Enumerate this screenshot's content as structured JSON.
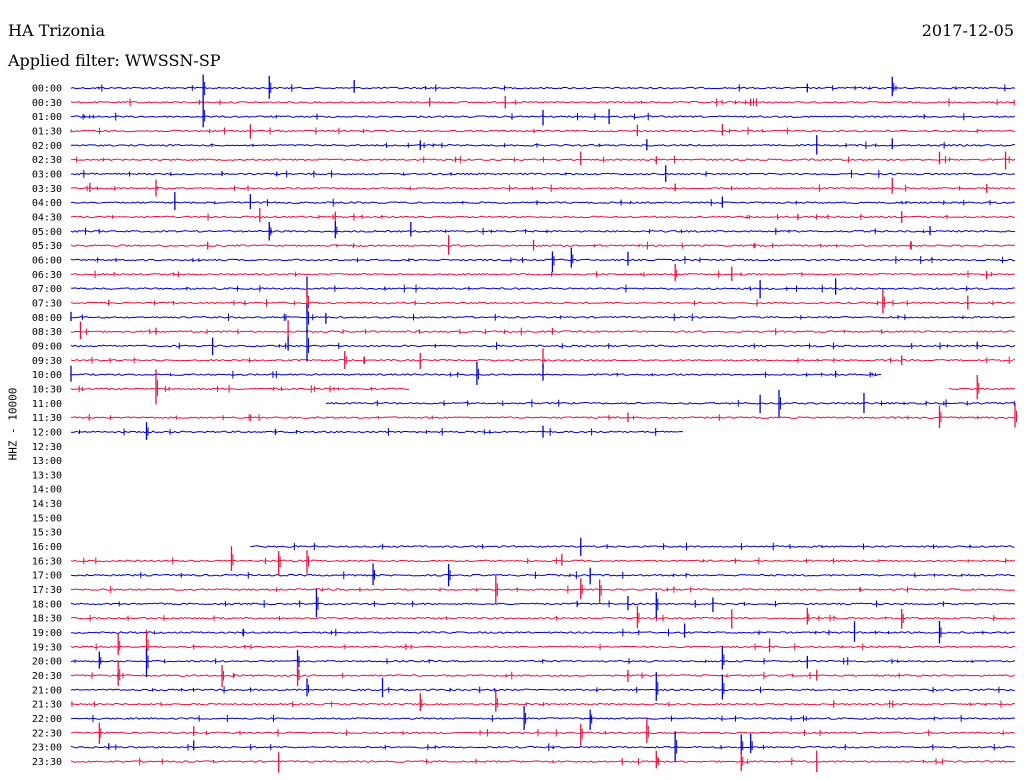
{
  "header": {
    "station": "HA Trizonia",
    "date": "2017-12-05",
    "filter": "Applied filter: WWSSN-SP"
  },
  "chart_data": {
    "type": "line",
    "title": "HA Trizonia",
    "ylabel": "HHZ - 10000",
    "row_labels": [
      "00:00",
      "00:30",
      "01:00",
      "01:30",
      "02:00",
      "02:30",
      "03:00",
      "03:30",
      "04:00",
      "04:30",
      "05:00",
      "05:30",
      "06:00",
      "06:30",
      "07:00",
      "07:30",
      "08:00",
      "08:30",
      "09:00",
      "09:30",
      "10:00",
      "10:30",
      "11:00",
      "11:30",
      "12:00",
      "12:30",
      "13:00",
      "13:30",
      "14:00",
      "14:30",
      "15:00",
      "15:30",
      "16:00",
      "16:30",
      "17:00",
      "17:30",
      "18:00",
      "18:30",
      "19:00",
      "19:30",
      "20:00",
      "20:30",
      "21:00",
      "21:30",
      "22:00",
      "22:30",
      "23:00",
      "23:30"
    ],
    "series_colors": [
      "#0000c8",
      "#e8103c"
    ],
    "row_coverage": [
      [
        0,
        1
      ],
      [
        0,
        1
      ],
      [
        0,
        1
      ],
      [
        0,
        1
      ],
      [
        0,
        1
      ],
      [
        0,
        1
      ],
      [
        0,
        1
      ],
      [
        0,
        1
      ],
      [
        0,
        1
      ],
      [
        0,
        1
      ],
      [
        0,
        1
      ],
      [
        0,
        1
      ],
      [
        0,
        1
      ],
      [
        0,
        1
      ],
      [
        0,
        1
      ],
      [
        0,
        1
      ],
      [
        0,
        1
      ],
      [
        0,
        1
      ],
      [
        0,
        1
      ],
      [
        0,
        1
      ],
      [
        0,
        0.86
      ],
      [
        0,
        0.36
      ],
      [
        0.27,
        1
      ],
      [
        0,
        1
      ],
      [
        0,
        0.65
      ],
      null,
      null,
      null,
      null,
      null,
      null,
      null,
      [
        0.19,
        1
      ],
      [
        0,
        1
      ],
      [
        0,
        1
      ],
      [
        0,
        1
      ],
      [
        0,
        1
      ],
      [
        0,
        1
      ],
      [
        0,
        1
      ],
      [
        0,
        1
      ],
      [
        0,
        1
      ],
      [
        0,
        1
      ],
      [
        0,
        1
      ],
      [
        0,
        1
      ],
      [
        0,
        1
      ],
      [
        0,
        1
      ],
      [
        0,
        1
      ],
      [
        0,
        1
      ]
    ],
    "row_extra_segments": {
      "21": [
        [
          0.93,
          1
        ]
      ]
    },
    "events": [
      {
        "row": 0,
        "t": 0.14,
        "amp": 1.0
      },
      {
        "row": 0,
        "t": 0.21,
        "amp": 0.9
      },
      {
        "row": 0,
        "t": 0.3,
        "amp": 0.5
      },
      {
        "row": 0,
        "t": 0.78,
        "amp": 0.3
      },
      {
        "row": 0,
        "t": 0.87,
        "amp": 0.9
      },
      {
        "row": 1,
        "t": 0.38,
        "amp": 0.4
      },
      {
        "row": 1,
        "t": 0.46,
        "amp": 0.5
      },
      {
        "row": 1,
        "t": 0.72,
        "amp": 0.3
      },
      {
        "row": 2,
        "t": 0.14,
        "amp": 1.0
      },
      {
        "row": 2,
        "t": 0.5,
        "amp": 0.6
      },
      {
        "row": 2,
        "t": 0.57,
        "amp": 0.5
      },
      {
        "row": 3,
        "t": 0.19,
        "amp": 0.6
      },
      {
        "row": 3,
        "t": 0.6,
        "amp": 0.5
      },
      {
        "row": 3,
        "t": 0.69,
        "amp": 0.4
      },
      {
        "row": 4,
        "t": 0.37,
        "amp": 0.3
      },
      {
        "row": 4,
        "t": 0.61,
        "amp": 0.4
      },
      {
        "row": 4,
        "t": 0.79,
        "amp": 0.6
      },
      {
        "row": 4,
        "t": 0.87,
        "amp": 0.5
      },
      {
        "row": 5,
        "t": 0.54,
        "amp": 0.6
      },
      {
        "row": 5,
        "t": 0.62,
        "amp": 0.3
      },
      {
        "row": 5,
        "t": 0.92,
        "amp": 0.6
      },
      {
        "row": 5,
        "t": 0.99,
        "amp": 0.6
      },
      {
        "row": 6,
        "t": 0.16,
        "amp": 0.2
      },
      {
        "row": 6,
        "t": 0.63,
        "amp": 0.5
      },
      {
        "row": 7,
        "t": 0.02,
        "amp": 0.5
      },
      {
        "row": 7,
        "t": 0.09,
        "amp": 0.5
      },
      {
        "row": 7,
        "t": 0.64,
        "amp": 0.4
      },
      {
        "row": 7,
        "t": 0.87,
        "amp": 0.6
      },
      {
        "row": 7,
        "t": 0.97,
        "amp": 0.3
      },
      {
        "row": 8,
        "t": 0.11,
        "amp": 0.6
      },
      {
        "row": 8,
        "t": 0.19,
        "amp": 0.5
      },
      {
        "row": 8,
        "t": 0.69,
        "amp": 0.4
      },
      {
        "row": 9,
        "t": 0.2,
        "amp": 0.7
      },
      {
        "row": 9,
        "t": 0.28,
        "amp": 0.4
      },
      {
        "row": 9,
        "t": 0.77,
        "amp": 0.3
      },
      {
        "row": 9,
        "t": 0.88,
        "amp": 0.4
      },
      {
        "row": 10,
        "t": 0.21,
        "amp": 0.8
      },
      {
        "row": 10,
        "t": 0.28,
        "amp": 0.9
      },
      {
        "row": 10,
        "t": 0.36,
        "amp": 0.6
      },
      {
        "row": 10,
        "t": 0.91,
        "amp": 0.3
      },
      {
        "row": 11,
        "t": 0.4,
        "amp": 0.7
      },
      {
        "row": 11,
        "t": 0.49,
        "amp": 0.4
      },
      {
        "row": 11,
        "t": 0.89,
        "amp": 0.3
      },
      {
        "row": 12,
        "t": 0.51,
        "amp": 0.8
      },
      {
        "row": 12,
        "t": 0.53,
        "amp": 0.8
      },
      {
        "row": 12,
        "t": 0.59,
        "amp": 0.6
      },
      {
        "row": 13,
        "t": 0.64,
        "amp": 0.9
      },
      {
        "row": 13,
        "t": 0.7,
        "amp": 0.6
      },
      {
        "row": 13,
        "t": 0.97,
        "amp": 0.3
      },
      {
        "row": 14,
        "t": 0.25,
        "amp": 0.7
      },
      {
        "row": 14,
        "t": 0.73,
        "amp": 0.6
      },
      {
        "row": 14,
        "t": 0.81,
        "amp": 0.6
      },
      {
        "row": 15,
        "t": 0.04,
        "amp": 0.3
      },
      {
        "row": 15,
        "t": 0.25,
        "amp": 1.0
      },
      {
        "row": 15,
        "t": 0.86,
        "amp": 0.9
      },
      {
        "row": 15,
        "t": 0.95,
        "amp": 0.6
      },
      {
        "row": 16,
        "t": 0.0,
        "amp": 0.5
      },
      {
        "row": 16,
        "t": 0.25,
        "amp": 1.0
      },
      {
        "row": 16,
        "t": 0.27,
        "amp": 0.4
      },
      {
        "row": 17,
        "t": 0.01,
        "amp": 0.6
      },
      {
        "row": 17,
        "t": 0.09,
        "amp": 0.3
      },
      {
        "row": 17,
        "t": 0.23,
        "amp": 0.7
      },
      {
        "row": 17,
        "t": 0.51,
        "amp": 0.3
      },
      {
        "row": 18,
        "t": 0.15,
        "amp": 0.6
      },
      {
        "row": 18,
        "t": 0.23,
        "amp": 0.6
      },
      {
        "row": 18,
        "t": 0.25,
        "amp": 1.0
      },
      {
        "row": 18,
        "t": 0.96,
        "amp": 0.3
      },
      {
        "row": 19,
        "t": 0.29,
        "amp": 0.8
      },
      {
        "row": 19,
        "t": 0.37,
        "amp": 0.6
      },
      {
        "row": 19,
        "t": 0.5,
        "amp": 0.7
      },
      {
        "row": 19,
        "t": 0.88,
        "amp": 0.3
      },
      {
        "row": 20,
        "t": 0.0,
        "amp": 0.6
      },
      {
        "row": 20,
        "t": 0.43,
        "amp": 0.8
      },
      {
        "row": 20,
        "t": 0.5,
        "amp": 0.6
      },
      {
        "row": 20,
        "t": 0.81,
        "amp": 0.3
      },
      {
        "row": 21,
        "t": 0.09,
        "amp": 1.3
      },
      {
        "row": 21,
        "t": 0.96,
        "amp": 1.0
      },
      {
        "row": 22,
        "t": 0.73,
        "amp": 0.6
      },
      {
        "row": 22,
        "t": 0.75,
        "amp": 0.9
      },
      {
        "row": 22,
        "t": 0.84,
        "amp": 0.6
      },
      {
        "row": 23,
        "t": 0.59,
        "amp": 0.3
      },
      {
        "row": 23,
        "t": 0.92,
        "amp": 1.0
      },
      {
        "row": 23,
        "t": 1.0,
        "amp": 1.0
      },
      {
        "row": 24,
        "t": 0.08,
        "amp": 0.9
      },
      {
        "row": 24,
        "t": 0.5,
        "amp": 0.4
      },
      {
        "row": 32,
        "t": 0.54,
        "amp": 0.7
      },
      {
        "row": 33,
        "t": 0.17,
        "amp": 0.9
      },
      {
        "row": 33,
        "t": 0.22,
        "amp": 0.9
      },
      {
        "row": 33,
        "t": 0.25,
        "amp": 0.8
      },
      {
        "row": 33,
        "t": 0.52,
        "amp": 0.5
      },
      {
        "row": 34,
        "t": 0.32,
        "amp": 0.9
      },
      {
        "row": 34,
        "t": 0.4,
        "amp": 0.8
      },
      {
        "row": 34,
        "t": 0.55,
        "amp": 0.6
      },
      {
        "row": 35,
        "t": 0.45,
        "amp": 0.9
      },
      {
        "row": 35,
        "t": 0.54,
        "amp": 0.8
      },
      {
        "row": 35,
        "t": 0.56,
        "amp": 0.8
      },
      {
        "row": 36,
        "t": 0.26,
        "amp": 0.9
      },
      {
        "row": 36,
        "t": 0.59,
        "amp": 0.7
      },
      {
        "row": 36,
        "t": 0.62,
        "amp": 0.9
      },
      {
        "row": 36,
        "t": 0.68,
        "amp": 0.6
      },
      {
        "row": 37,
        "t": 0.6,
        "amp": 0.8
      },
      {
        "row": 37,
        "t": 0.7,
        "amp": 0.7
      },
      {
        "row": 37,
        "t": 0.78,
        "amp": 0.8
      },
      {
        "row": 37,
        "t": 0.88,
        "amp": 0.8
      },
      {
        "row": 38,
        "t": 0.65,
        "amp": 0.6
      },
      {
        "row": 38,
        "t": 0.83,
        "amp": 0.7
      },
      {
        "row": 38,
        "t": 0.92,
        "amp": 0.8
      },
      {
        "row": 39,
        "t": 0.05,
        "amp": 1.0
      },
      {
        "row": 39,
        "t": 0.08,
        "amp": 1.0
      },
      {
        "row": 39,
        "t": 0.74,
        "amp": 0.5
      },
      {
        "row": 40,
        "t": 0.03,
        "amp": 0.8
      },
      {
        "row": 40,
        "t": 0.08,
        "amp": 1.0
      },
      {
        "row": 40,
        "t": 0.24,
        "amp": 0.8
      },
      {
        "row": 40,
        "t": 0.69,
        "amp": 1.0
      },
      {
        "row": 40,
        "t": 0.78,
        "amp": 0.5
      },
      {
        "row": 41,
        "t": 0.05,
        "amp": 1.0
      },
      {
        "row": 41,
        "t": 0.16,
        "amp": 0.9
      },
      {
        "row": 41,
        "t": 0.24,
        "amp": 0.9
      },
      {
        "row": 41,
        "t": 0.59,
        "amp": 0.5
      },
      {
        "row": 41,
        "t": 0.79,
        "amp": 0.5
      },
      {
        "row": 42,
        "t": 0.25,
        "amp": 0.8
      },
      {
        "row": 42,
        "t": 0.33,
        "amp": 0.7
      },
      {
        "row": 42,
        "t": 0.62,
        "amp": 1.0
      },
      {
        "row": 42,
        "t": 0.69,
        "amp": 1.0
      },
      {
        "row": 43,
        "t": 0.37,
        "amp": 0.9
      },
      {
        "row": 43,
        "t": 0.45,
        "amp": 0.8
      },
      {
        "row": 44,
        "t": 0.48,
        "amp": 0.9
      },
      {
        "row": 44,
        "t": 0.55,
        "amp": 0.8
      },
      {
        "row": 45,
        "t": 0.03,
        "amp": 0.9
      },
      {
        "row": 45,
        "t": 0.13,
        "amp": 0.4
      },
      {
        "row": 45,
        "t": 0.54,
        "amp": 0.8
      },
      {
        "row": 45,
        "t": 0.61,
        "amp": 0.9
      },
      {
        "row": 46,
        "t": 0.04,
        "amp": 0.3
      },
      {
        "row": 46,
        "t": 0.13,
        "amp": 0.4
      },
      {
        "row": 46,
        "t": 0.64,
        "amp": 1.0
      },
      {
        "row": 46,
        "t": 0.71,
        "amp": 0.8
      },
      {
        "row": 46,
        "t": 0.72,
        "amp": 0.8
      },
      {
        "row": 47,
        "t": 0.22,
        "amp": 0.7
      },
      {
        "row": 47,
        "t": 0.62,
        "amp": 0.9
      },
      {
        "row": 47,
        "t": 0.71,
        "amp": 0.8
      },
      {
        "row": 47,
        "t": 0.79,
        "amp": 0.7
      }
    ]
  }
}
